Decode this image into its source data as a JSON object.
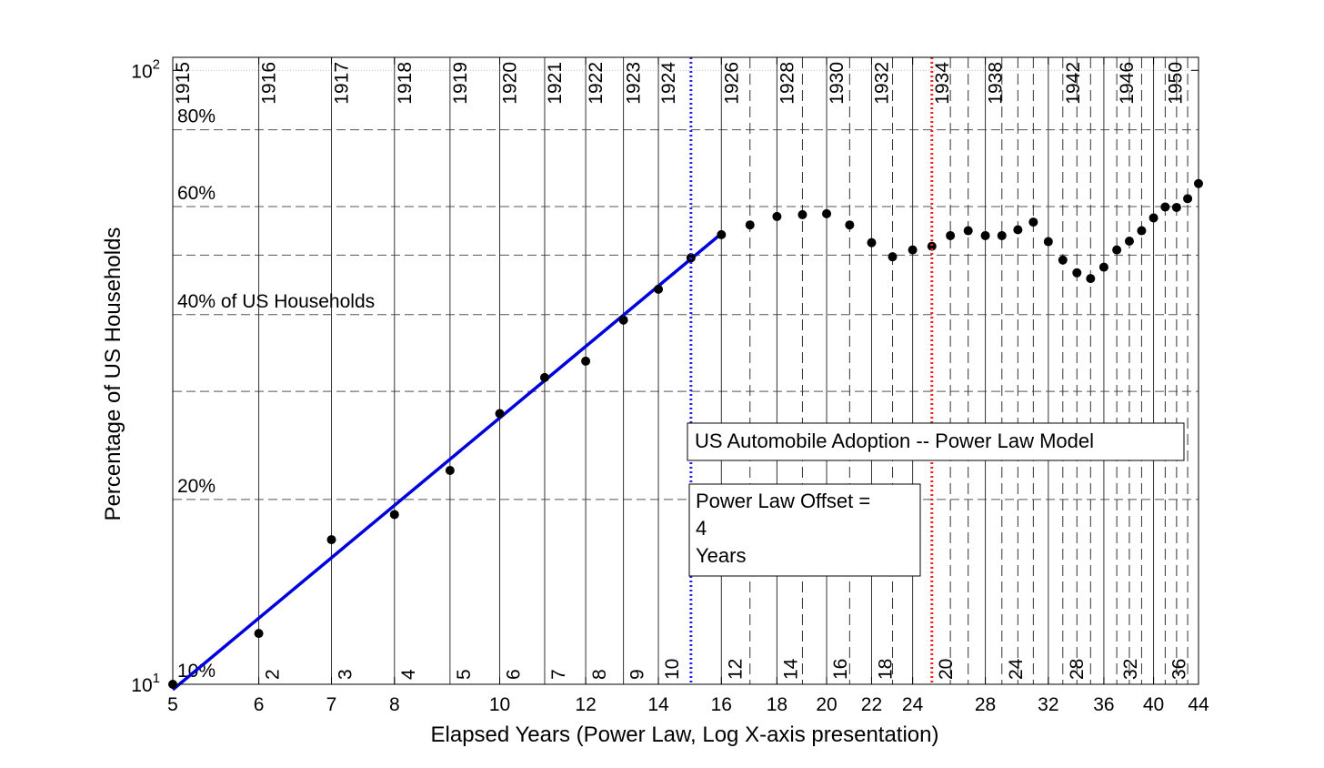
{
  "chart_data": {
    "type": "scatter",
    "xlabel": "Elapsed Years (Power Law, Log X-axis presentation)",
    "ylabel": "Percentage of US Households",
    "x_scale": "log",
    "y_scale": "log",
    "xlim": [
      5,
      44
    ],
    "ylim": [
      10,
      105
    ],
    "grid": true,
    "x_ticks": [
      5,
      6,
      7,
      8,
      10,
      12,
      14,
      16,
      18,
      20,
      22,
      24,
      28,
      32,
      36,
      40,
      44
    ],
    "y_ticks": [
      {
        "value": 10,
        "base": "10",
        "exp": "1"
      },
      {
        "value": 100,
        "base": "10",
        "exp": "2"
      }
    ],
    "percent_labels": [
      {
        "value": 10,
        "text": "10%"
      },
      {
        "value": 20,
        "text": "20%"
      },
      {
        "value": 40,
        "text": "40% of US Households"
      },
      {
        "value": 60,
        "text": "60%"
      },
      {
        "value": 80,
        "text": "80%"
      }
    ],
    "y_gridlines": [
      20,
      30,
      40,
      50,
      60,
      80,
      100
    ],
    "y_dotted_gridlines": [
      100
    ],
    "years": [
      {
        "x": 5,
        "label": "1915",
        "style": "solid"
      },
      {
        "x": 6,
        "label": "1916",
        "style": "solid"
      },
      {
        "x": 7,
        "label": "1917",
        "style": "solid"
      },
      {
        "x": 8,
        "label": "1918",
        "style": "solid"
      },
      {
        "x": 9,
        "label": "1919",
        "style": "solid"
      },
      {
        "x": 10,
        "label": "1920",
        "style": "solid"
      },
      {
        "x": 11,
        "label": "1921",
        "style": "solid"
      },
      {
        "x": 12,
        "label": "1922",
        "style": "solid"
      },
      {
        "x": 13,
        "label": "1923",
        "style": "solid"
      },
      {
        "x": 14,
        "label": "1924",
        "style": "solid"
      },
      {
        "x": 16,
        "label": "1926",
        "style": "solid"
      },
      {
        "x": 17,
        "label": "",
        "style": "dashed"
      },
      {
        "x": 18,
        "label": "1928",
        "style": "solid"
      },
      {
        "x": 19,
        "label": "",
        "style": "dashed"
      },
      {
        "x": 20,
        "label": "1930",
        "style": "solid"
      },
      {
        "x": 21,
        "label": "",
        "style": "dashed"
      },
      {
        "x": 22,
        "label": "1932",
        "style": "solid"
      },
      {
        "x": 23,
        "label": "",
        "style": "dashed"
      },
      {
        "x": 24,
        "label": "",
        "style": "solid"
      },
      {
        "x": 25,
        "label": "1934",
        "style": "none"
      },
      {
        "x": 26,
        "label": "",
        "style": "dashed"
      },
      {
        "x": 27,
        "label": "",
        "style": "dashed"
      },
      {
        "x": 28,
        "label": "1938",
        "style": "solid"
      },
      {
        "x": 29,
        "label": "",
        "style": "dashed"
      },
      {
        "x": 30,
        "label": "",
        "style": "dashed"
      },
      {
        "x": 31,
        "label": "",
        "style": "dashed"
      },
      {
        "x": 32,
        "label": "",
        "style": "solid"
      },
      {
        "x": 33,
        "label": "1942",
        "style": "dashed"
      },
      {
        "x": 34,
        "label": "",
        "style": "dashed"
      },
      {
        "x": 35,
        "label": "",
        "style": "dashed"
      },
      {
        "x": 36,
        "label": "",
        "style": "solid"
      },
      {
        "x": 37,
        "label": "1946",
        "style": "dashed"
      },
      {
        "x": 38,
        "label": "",
        "style": "dashed"
      },
      {
        "x": 39,
        "label": "",
        "style": "dashed"
      },
      {
        "x": 40,
        "label": "",
        "style": "solid"
      },
      {
        "x": 41,
        "label": "1950",
        "style": "dashed"
      },
      {
        "x": 42,
        "label": "",
        "style": "dashed"
      },
      {
        "x": 43,
        "label": "",
        "style": "dashed"
      }
    ],
    "offset_labels": [
      {
        "x": 6,
        "label": "2"
      },
      {
        "x": 7,
        "label": "3"
      },
      {
        "x": 8,
        "label": "4"
      },
      {
        "x": 9,
        "label": "5"
      },
      {
        "x": 10,
        "label": "6"
      },
      {
        "x": 11,
        "label": "7"
      },
      {
        "x": 12,
        "label": "8"
      },
      {
        "x": 13,
        "label": "9"
      },
      {
        "x": 14,
        "label": "10"
      },
      {
        "x": 16,
        "label": "12"
      },
      {
        "x": 18,
        "label": "14"
      },
      {
        "x": 20,
        "label": "16"
      },
      {
        "x": 22,
        "label": "18"
      },
      {
        "x": 25,
        "label": "20"
      },
      {
        "x": 29,
        "label": "24"
      },
      {
        "x": 33,
        "label": "28"
      },
      {
        "x": 37,
        "label": "32"
      },
      {
        "x": 41,
        "label": "36"
      }
    ],
    "series": [
      {
        "type": "scatter",
        "color": "#000000",
        "points": [
          [
            5,
            10.0
          ],
          [
            6,
            12.1
          ],
          [
            7,
            17.2
          ],
          [
            8,
            18.9
          ],
          [
            9,
            22.3
          ],
          [
            10,
            27.6
          ],
          [
            11,
            31.6
          ],
          [
            12,
            33.6
          ],
          [
            13,
            39.2
          ],
          [
            14,
            44.0
          ],
          [
            15,
            49.5
          ],
          [
            16,
            54.0
          ],
          [
            17,
            56.0
          ],
          [
            18,
            57.8
          ],
          [
            19,
            58.2
          ],
          [
            20,
            58.4
          ],
          [
            21,
            56.0
          ],
          [
            22,
            52.4
          ],
          [
            23,
            49.7
          ],
          [
            24,
            51.0
          ],
          [
            25,
            51.7
          ],
          [
            26,
            53.8
          ],
          [
            27,
            54.8
          ],
          [
            28,
            53.8
          ],
          [
            29,
            53.8
          ],
          [
            30,
            55.0
          ],
          [
            31,
            56.6
          ],
          [
            32,
            52.6
          ],
          [
            33,
            49.1
          ],
          [
            34,
            46.8
          ],
          [
            35,
            45.8
          ],
          [
            36,
            47.8
          ],
          [
            37,
            51.0
          ],
          [
            38,
            52.7
          ],
          [
            39,
            54.8
          ],
          [
            40,
            57.5
          ],
          [
            41,
            59.9
          ],
          [
            42,
            59.8
          ],
          [
            43,
            61.8
          ],
          [
            44,
            65.4
          ]
        ]
      },
      {
        "type": "line",
        "color": "#0000dd",
        "x_range": [
          5,
          16
        ],
        "y_range": [
          9.8,
          54.2
        ]
      }
    ],
    "vlines": [
      {
        "x": 15,
        "color": "#2222ee",
        "style": "dotted"
      },
      {
        "x": 25,
        "color": "#ee2222",
        "style": "dotted"
      }
    ],
    "annotations": [
      {
        "text": "US Automobile Adoption -- Power Law Model"
      },
      {
        "lines": [
          "Power Law Offset =",
          "4",
          "Years"
        ]
      }
    ]
  }
}
